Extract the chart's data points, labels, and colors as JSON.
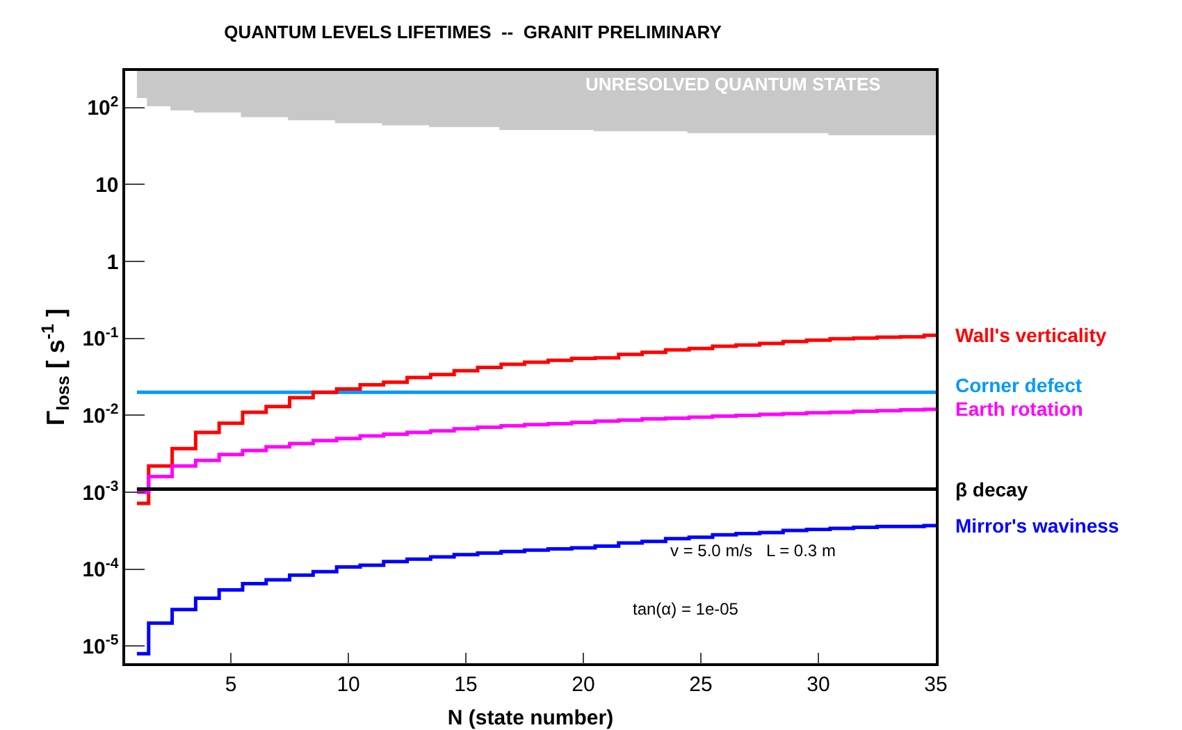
{
  "chart_data": {
    "type": "step",
    "title": "QUANTUM LEVELS LIFETIMES  --  GRANIT PRELIMINARY",
    "xlabel": "N (state number)",
    "ylabel": "Γ$_{loss}$ [ s$^{-1}$ ]",
    "x": [
      1,
      2,
      3,
      4,
      5,
      6,
      7,
      8,
      9,
      10,
      11,
      12,
      13,
      14,
      15,
      16,
      17,
      18,
      19,
      20,
      21,
      22,
      23,
      24,
      25,
      26,
      27,
      28,
      29,
      30,
      31,
      32,
      33,
      34,
      35
    ],
    "series": [
      {
        "name": "UNRESOLVED QUANTUM STATES",
        "color": "#c8c8c8",
        "values": [
          140,
          110,
          97,
          91,
          91,
          79,
          79,
          72,
          72,
          66,
          66,
          62,
          62,
          59,
          59,
          59,
          54,
          54,
          54,
          54,
          52,
          52,
          52,
          52,
          49,
          49,
          49,
          49,
          49,
          49,
          46,
          46,
          46,
          46,
          46
        ],
        "lower": [
          140,
          110,
          97,
          91,
          91,
          79,
          79,
          72,
          72,
          66,
          66,
          62,
          62,
          59,
          59,
          59,
          54,
          54,
          54,
          54,
          52,
          52,
          52,
          52,
          49,
          49,
          49,
          49,
          49,
          49,
          46,
          46,
          46,
          46,
          46
        ],
        "upper": [
          300,
          300,
          300,
          300,
          300,
          300,
          300,
          300,
          300,
          300,
          300,
          300,
          300,
          300,
          300,
          300,
          300,
          300,
          300,
          300,
          300,
          300,
          300,
          300,
          300,
          300,
          300,
          300,
          300,
          300,
          300,
          300,
          300,
          300,
          300
        ]
      },
      {
        "name": "Corner defect",
        "color": "#0099ff",
        "values": [
          0.02,
          0.02,
          0.02,
          0.02,
          0.02,
          0.02,
          0.02,
          0.02,
          0.02,
          0.02,
          0.02,
          0.02,
          0.02,
          0.02,
          0.02,
          0.02,
          0.02,
          0.02,
          0.02,
          0.02,
          0.02,
          0.02,
          0.02,
          0.02,
          0.02,
          0.02,
          0.02,
          0.02,
          0.02,
          0.02,
          0.02,
          0.02,
          0.02,
          0.02,
          0.02
        ]
      },
      {
        "name": "Wall's verticality",
        "color": "#ff0000",
        "values": [
          0.00072,
          0.0022,
          0.0037,
          0.006,
          0.0079,
          0.011,
          0.013,
          0.017,
          0.02,
          0.022,
          0.025,
          0.027,
          0.031,
          0.034,
          0.038,
          0.042,
          0.046,
          0.049,
          0.052,
          0.055,
          0.056,
          0.062,
          0.066,
          0.071,
          0.074,
          0.079,
          0.082,
          0.086,
          0.091,
          0.095,
          0.099,
          0.101,
          0.104,
          0.105,
          0.11
        ]
      },
      {
        "name": "Earth rotation",
        "color": "#ff00ff",
        "values": [
          0.001,
          0.0016,
          0.0022,
          0.0026,
          0.0031,
          0.0035,
          0.0039,
          0.0043,
          0.0047,
          0.005,
          0.0054,
          0.0057,
          0.006,
          0.0063,
          0.0067,
          0.007,
          0.0073,
          0.0076,
          0.0078,
          0.0081,
          0.0084,
          0.0087,
          0.009,
          0.0092,
          0.0095,
          0.0098,
          0.01,
          0.0103,
          0.0105,
          0.0108,
          0.011,
          0.0113,
          0.0115,
          0.0118,
          0.012
        ]
      },
      {
        "name": "β decay",
        "color": "#000000",
        "values": [
          0.0011,
          0.0011,
          0.0011,
          0.0011,
          0.0011,
          0.0011,
          0.0011,
          0.0011,
          0.0011,
          0.0011,
          0.0011,
          0.0011,
          0.0011,
          0.0011,
          0.0011,
          0.0011,
          0.0011,
          0.0011,
          0.0011,
          0.0011,
          0.0011,
          0.0011,
          0.0011,
          0.0011,
          0.0011,
          0.0011,
          0.0011,
          0.0011,
          0.0011,
          0.0011,
          0.0011,
          0.0011,
          0.0011,
          0.0011,
          0.0011
        ]
      },
      {
        "name": "Mirror's waviness",
        "color": "#0000ff",
        "values": [
          8e-06,
          2e-05,
          3e-05,
          4.2e-05,
          5.4e-05,
          6.5e-05,
          7.3e-05,
          8.4e-05,
          9.3e-05,
          0.000107,
          0.000113,
          0.000126,
          0.000135,
          0.000145,
          0.000155,
          0.000162,
          0.00017,
          0.000177,
          0.000184,
          0.00019,
          0.0002,
          0.00022,
          0.00023,
          0.00025,
          0.00026,
          0.00028,
          0.00029,
          0.0003,
          0.00032,
          0.00033,
          0.00034,
          0.00035,
          0.00036,
          0.00036,
          0.00037
        ]
      }
    ],
    "annotations": [
      "v = 5.0 m/s   L = 0.3 m",
      "tan(α) = 1e-05"
    ],
    "log": "y",
    "xlim": [
      0.5,
      35
    ],
    "xticks": [
      5,
      10,
      15,
      20,
      25,
      30,
      35
    ],
    "ylim": [
      6e-06,
      300
    ],
    "yticks": [
      {
        "value": 1e-05,
        "label": "10$^{-5}$"
      },
      {
        "value": 0.0001,
        "label": "10$^{-4}$"
      },
      {
        "value": 0.001,
        "label": "10$^{-3}$"
      },
      {
        "value": 0.01,
        "label": "10$^{-2}$"
      },
      {
        "value": 0.1,
        "label": "10$^{-1}$"
      },
      1,
      10,
      {
        "value": 100,
        "label": "10$^{2}$"
      }
    ],
    "legend": false
  }
}
